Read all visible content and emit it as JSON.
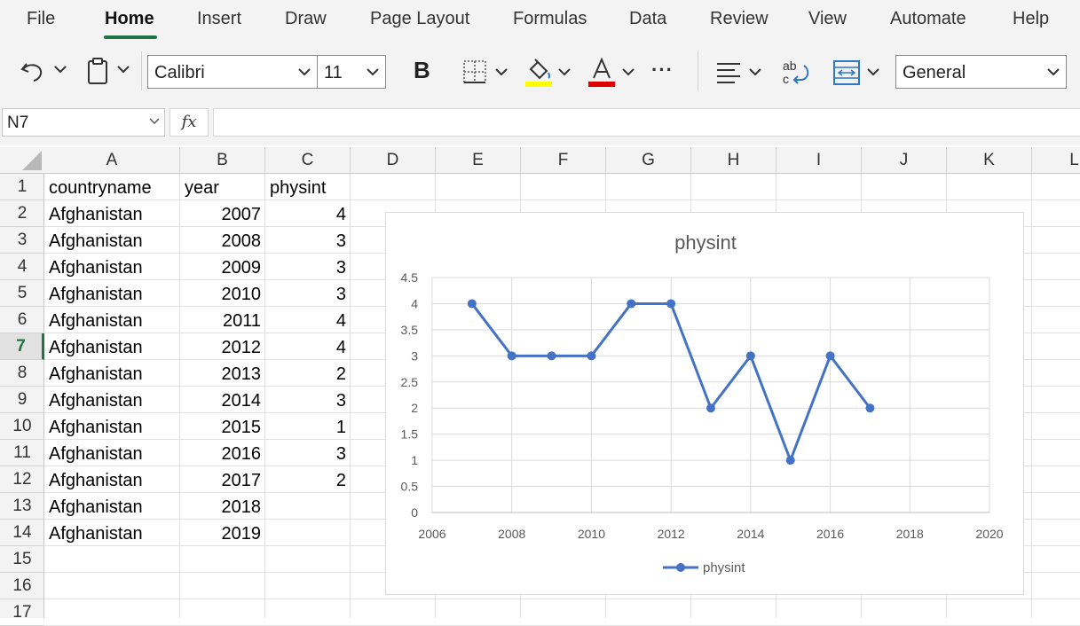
{
  "menu": {
    "items": [
      "File",
      "Home",
      "Insert",
      "Draw",
      "Page Layout",
      "Formulas",
      "Data",
      "Review",
      "View",
      "Automate",
      "Help"
    ],
    "active": "Home"
  },
  "toolbar": {
    "font_name": "Calibri",
    "font_size": "11",
    "bold_label": "B",
    "more_label": "···",
    "number_format": "General",
    "fill_color": "#ffff00",
    "font_color": "#e00000"
  },
  "formula_bar": {
    "name_box": "N7",
    "fx_label": "fx",
    "formula": ""
  },
  "grid": {
    "columns": [
      "A",
      "B",
      "C",
      "D",
      "E",
      "F",
      "G",
      "H",
      "I",
      "J",
      "K",
      "L"
    ],
    "rows": [
      "1",
      "2",
      "3",
      "4",
      "5",
      "6",
      "7",
      "8",
      "9",
      "10",
      "11",
      "12",
      "13",
      "14",
      "15",
      "16",
      "17"
    ],
    "selected_row": "7",
    "cells": [
      [
        "countryname",
        "year",
        "physint"
      ],
      [
        "Afghanistan",
        "2007",
        "4"
      ],
      [
        "Afghanistan",
        "2008",
        "3"
      ],
      [
        "Afghanistan",
        "2009",
        "3"
      ],
      [
        "Afghanistan",
        "2010",
        "3"
      ],
      [
        "Afghanistan",
        "2011",
        "4"
      ],
      [
        "Afghanistan",
        "2012",
        "4"
      ],
      [
        "Afghanistan",
        "2013",
        "2"
      ],
      [
        "Afghanistan",
        "2014",
        "3"
      ],
      [
        "Afghanistan",
        "2015",
        "1"
      ],
      [
        "Afghanistan",
        "2016",
        "3"
      ],
      [
        "Afghanistan",
        "2017",
        "2"
      ],
      [
        "Afghanistan",
        "2018",
        ""
      ],
      [
        "Afghanistan",
        "2019",
        ""
      ]
    ]
  },
  "chart_data": {
    "type": "scatter",
    "title": "physint",
    "xlabel": "",
    "ylabel": "",
    "xlim": [
      2006,
      2020
    ],
    "ylim": [
      0,
      4.5
    ],
    "x_ticks": [
      "2006",
      "2008",
      "2010",
      "2012",
      "2014",
      "2016",
      "2018",
      "2020"
    ],
    "y_ticks": [
      "0",
      "0.5",
      "1",
      "1.5",
      "2",
      "2.5",
      "3",
      "3.5",
      "4",
      "4.5"
    ],
    "grid": true,
    "legend_position": "bottom",
    "series": [
      {
        "name": "physint",
        "color": "#4472c4",
        "x": [
          2007,
          2008,
          2009,
          2010,
          2011,
          2012,
          2013,
          2014,
          2015,
          2016,
          2017
        ],
        "y": [
          4,
          3,
          3,
          3,
          4,
          4,
          2,
          3,
          1,
          3,
          2
        ]
      }
    ]
  }
}
